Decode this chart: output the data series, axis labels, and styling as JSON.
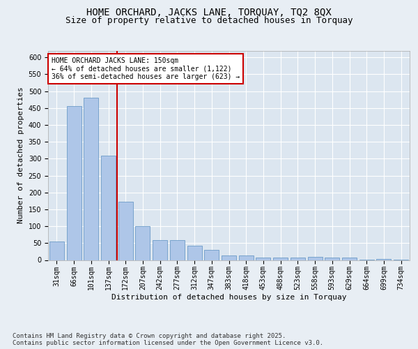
{
  "title_line1": "HOME ORCHARD, JACKS LANE, TORQUAY, TQ2 8QX",
  "title_line2": "Size of property relative to detached houses in Torquay",
  "xlabel": "Distribution of detached houses by size in Torquay",
  "ylabel": "Number of detached properties",
  "categories": [
    "31sqm",
    "66sqm",
    "101sqm",
    "137sqm",
    "172sqm",
    "207sqm",
    "242sqm",
    "277sqm",
    "312sqm",
    "347sqm",
    "383sqm",
    "418sqm",
    "453sqm",
    "488sqm",
    "523sqm",
    "558sqm",
    "593sqm",
    "629sqm",
    "664sqm",
    "699sqm",
    "734sqm"
  ],
  "values": [
    55,
    455,
    480,
    310,
    172,
    100,
    58,
    58,
    43,
    30,
    14,
    14,
    8,
    7,
    7,
    9,
    7,
    7,
    2,
    3,
    2
  ],
  "bar_color": "#aec6e8",
  "bar_edge_color": "#5a8fc0",
  "red_line_index": 3,
  "annotation_text": "HOME ORCHARD JACKS LANE: 150sqm\n← 64% of detached houses are smaller (1,122)\n36% of semi-detached houses are larger (623) →",
  "annotation_box_color": "#ffffff",
  "annotation_box_edge": "#cc0000",
  "red_line_color": "#cc0000",
  "background_color": "#e8eef4",
  "plot_bg_color": "#dce6f0",
  "grid_color": "#ffffff",
  "ylim": [
    0,
    620
  ],
  "yticks": [
    0,
    50,
    100,
    150,
    200,
    250,
    300,
    350,
    400,
    450,
    500,
    550,
    600
  ],
  "footer_line1": "Contains HM Land Registry data © Crown copyright and database right 2025.",
  "footer_line2": "Contains public sector information licensed under the Open Government Licence v3.0.",
  "title_fontsize": 10,
  "subtitle_fontsize": 9,
  "axis_label_fontsize": 8,
  "tick_fontsize": 7,
  "annotation_fontsize": 7,
  "footer_fontsize": 6.5
}
